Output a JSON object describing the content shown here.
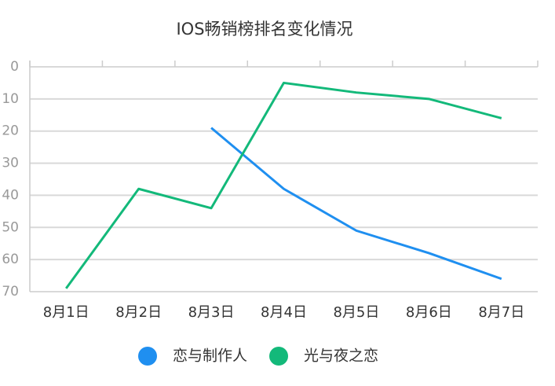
{
  "chart_data": {
    "type": "line",
    "title": "IOS畅销榜排名变化情况",
    "categories": [
      "8月1日",
      "8月2日",
      "8月3日",
      "8月4日",
      "8月5日",
      "8月6日",
      "8月7日"
    ],
    "series": [
      {
        "name": "恋与制作人",
        "color": "#1f8ff0",
        "values": [
          null,
          null,
          19,
          38,
          51,
          58,
          66
        ]
      },
      {
        "name": "光与夜之恋",
        "color": "#13b97a",
        "values": [
          69,
          38,
          44,
          5,
          8,
          10,
          16
        ]
      }
    ],
    "ylim": [
      0,
      70
    ],
    "yticks": [
      0,
      10,
      20,
      30,
      40,
      50,
      60,
      70
    ],
    "y_inverted": true,
    "grid": true,
    "legend": "bottom"
  }
}
